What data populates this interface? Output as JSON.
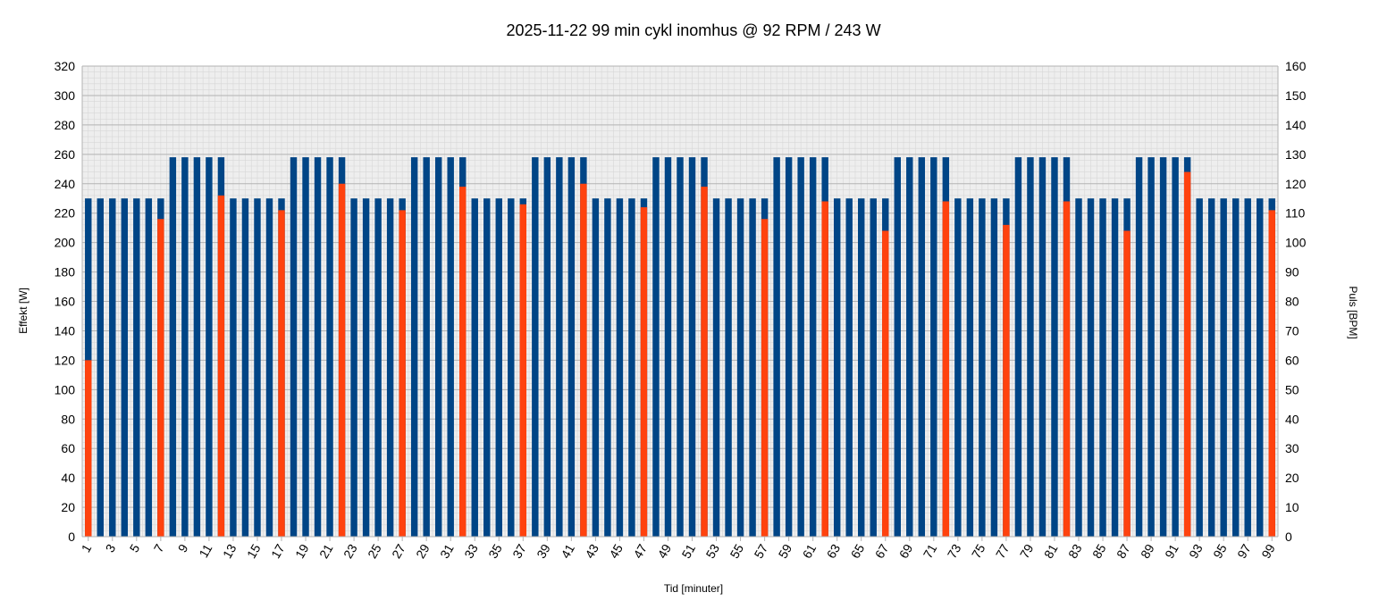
{
  "chart_data": {
    "type": "bar",
    "title": "2025-11-22 99 min cykl inomhus @ 92 RPM / 243 W",
    "xlabel": "Tid [minuter]",
    "ylabel": "Effekt [W]",
    "ylabel_right": "Puls [BPM]",
    "ylim": [
      0,
      320
    ],
    "ylim_right": [
      0,
      160
    ],
    "y_ticks": [
      0,
      20,
      40,
      60,
      80,
      100,
      120,
      140,
      160,
      180,
      200,
      220,
      240,
      260,
      280,
      300,
      320
    ],
    "y_ticks_right": [
      0,
      10,
      20,
      30,
      40,
      50,
      60,
      70,
      80,
      90,
      100,
      110,
      120,
      130,
      140,
      150,
      160
    ],
    "categories": [
      1,
      2,
      3,
      4,
      5,
      6,
      7,
      8,
      9,
      10,
      11,
      12,
      13,
      14,
      15,
      16,
      17,
      18,
      19,
      20,
      21,
      22,
      23,
      24,
      25,
      26,
      27,
      28,
      29,
      30,
      31,
      32,
      33,
      34,
      35,
      36,
      37,
      38,
      39,
      40,
      41,
      42,
      43,
      44,
      45,
      46,
      47,
      48,
      49,
      50,
      51,
      52,
      53,
      54,
      55,
      56,
      57,
      58,
      59,
      60,
      61,
      62,
      63,
      64,
      65,
      66,
      67,
      68,
      69,
      70,
      71,
      72,
      73,
      74,
      75,
      76,
      77,
      78,
      79,
      80,
      81,
      82,
      83,
      84,
      85,
      86,
      87,
      88,
      89,
      90,
      91,
      92,
      93,
      94,
      95,
      96,
      97,
      98,
      99
    ],
    "x_tick_labels": [
      "1",
      "3",
      "5",
      "7",
      "9",
      "11",
      "13",
      "15",
      "17",
      "19",
      "21",
      "23",
      "25",
      "27",
      "29",
      "31",
      "33",
      "35",
      "37",
      "39",
      "41",
      "43",
      "45",
      "47",
      "49",
      "51",
      "53",
      "55",
      "57",
      "59",
      "61",
      "63",
      "65",
      "67",
      "69",
      "71",
      "73",
      "75",
      "77",
      "79",
      "81",
      "83",
      "85",
      "87",
      "89",
      "91",
      "93",
      "95",
      "97",
      "99"
    ],
    "grid": true,
    "series": [
      {
        "name": "Effekt",
        "axis": "left",
        "color": "#004586",
        "values": [
          230,
          230,
          230,
          230,
          230,
          230,
          230,
          258,
          258,
          258,
          258,
          258,
          230,
          230,
          230,
          230,
          230,
          258,
          258,
          258,
          258,
          258,
          230,
          230,
          230,
          230,
          230,
          258,
          258,
          258,
          258,
          258,
          230,
          230,
          230,
          230,
          230,
          258,
          258,
          258,
          258,
          258,
          230,
          230,
          230,
          230,
          230,
          258,
          258,
          258,
          258,
          258,
          230,
          230,
          230,
          230,
          230,
          258,
          258,
          258,
          258,
          258,
          230,
          230,
          230,
          230,
          230,
          258,
          258,
          258,
          258,
          258,
          230,
          230,
          230,
          230,
          230,
          258,
          258,
          258,
          258,
          258,
          230,
          230,
          230,
          230,
          230,
          258,
          258,
          258,
          258,
          258,
          230,
          230,
          230,
          230,
          230,
          230,
          230
        ]
      },
      {
        "name": "Puls",
        "axis": "right",
        "color": "#ff420e",
        "values": [
          60,
          null,
          null,
          null,
          null,
          null,
          108,
          null,
          null,
          null,
          null,
          116,
          null,
          null,
          null,
          null,
          111,
          null,
          null,
          null,
          null,
          120,
          null,
          null,
          null,
          null,
          111,
          null,
          null,
          null,
          null,
          119,
          null,
          null,
          null,
          null,
          113,
          null,
          null,
          null,
          null,
          120,
          null,
          null,
          null,
          null,
          112,
          null,
          null,
          null,
          null,
          119,
          null,
          null,
          null,
          null,
          108,
          null,
          null,
          null,
          null,
          114,
          null,
          null,
          null,
          null,
          104,
          null,
          null,
          null,
          null,
          114,
          null,
          null,
          null,
          null,
          106,
          null,
          null,
          null,
          null,
          114,
          null,
          null,
          null,
          null,
          104,
          null,
          null,
          null,
          null,
          124,
          null,
          null,
          null,
          null,
          null,
          null,
          111
        ]
      }
    ]
  }
}
